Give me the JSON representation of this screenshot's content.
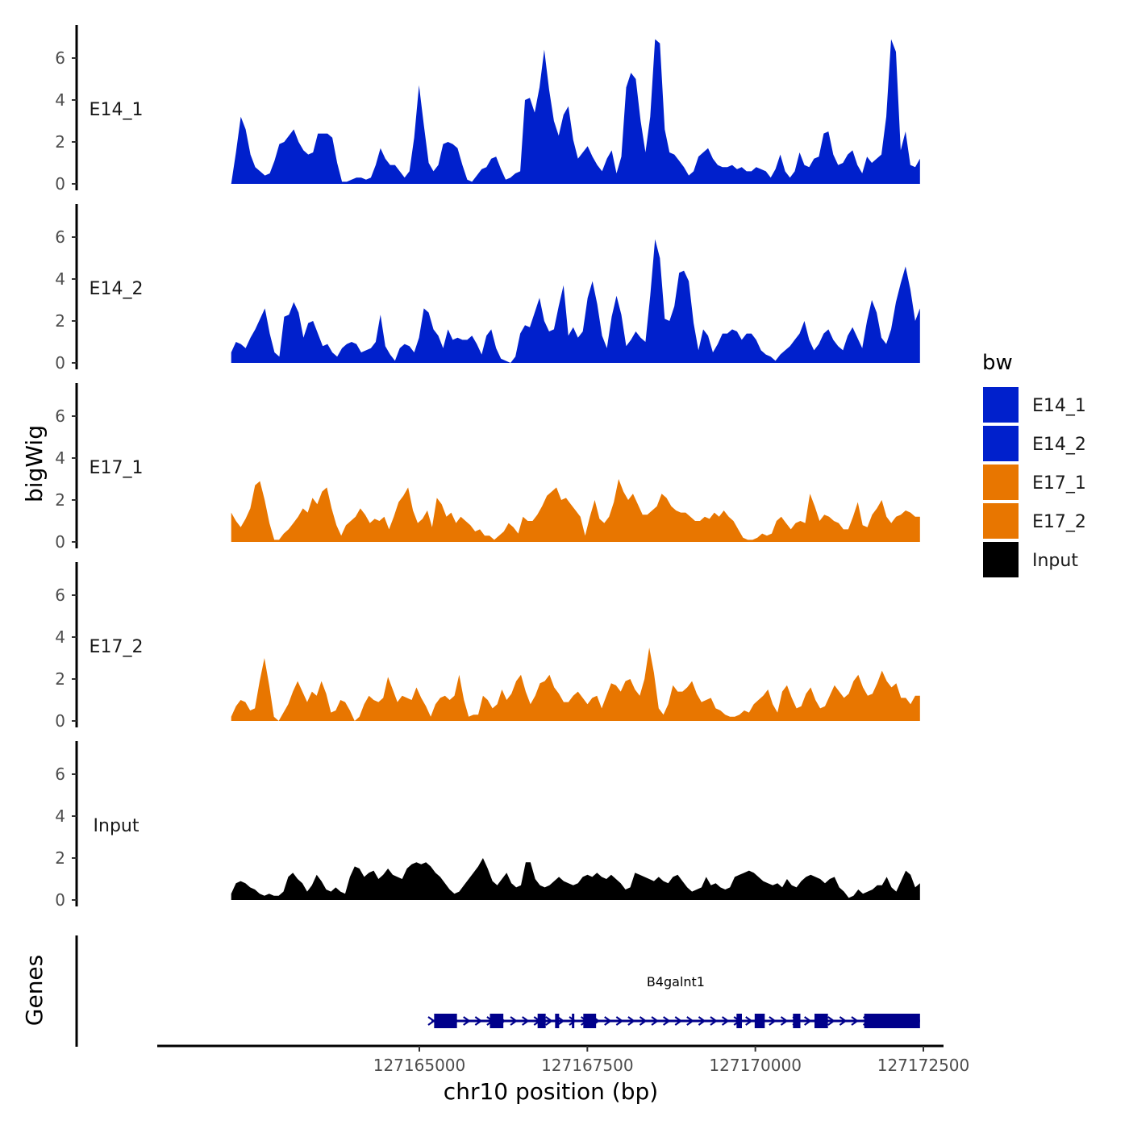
{
  "chart_data": {
    "type": "area",
    "y_axis_title": "bigWig",
    "x_axis_title": "chr10 position (bp)",
    "genes_axis_title": "Genes",
    "xlim": [
      127161100,
      127172800
    ],
    "data_range": [
      127162200,
      127172450
    ],
    "x_ticks": [
      127165000,
      127167500,
      127170000,
      127172500
    ],
    "x_tick_labels": [
      "127165000",
      "127167500",
      "127170000",
      "127172500"
    ],
    "ylim": [
      0,
      7.5
    ],
    "y_ticks": [
      0,
      2,
      4,
      6
    ],
    "y_tick_labels": [
      "0",
      "2",
      "4",
      "6"
    ],
    "legend": {
      "title": "bw",
      "entries": [
        {
          "label": "E14_1",
          "color": "#0020CC"
        },
        {
          "label": "E14_2",
          "color": "#0020CC"
        },
        {
          "label": "E17_1",
          "color": "#E87600"
        },
        {
          "label": "E17_2",
          "color": "#E87600"
        },
        {
          "label": "Input",
          "color": "#000000"
        }
      ]
    },
    "tracks": [
      {
        "name": "E14_1",
        "color": "#0020CC",
        "values": [
          0.0,
          1.5,
          3.2,
          2.6,
          1.4,
          0.8,
          0.6,
          0.4,
          0.5,
          1.1,
          1.9,
          2.0,
          2.3,
          2.6,
          2.0,
          1.6,
          1.4,
          1.5,
          2.4,
          2.4,
          2.4,
          2.2,
          1.0,
          0.1,
          0.1,
          0.2,
          0.3,
          0.3,
          0.2,
          0.3,
          0.9,
          1.7,
          1.2,
          0.9,
          0.9,
          0.6,
          0.3,
          0.6,
          2.2,
          4.7,
          2.8,
          1.0,
          0.6,
          0.9,
          1.9,
          2.0,
          1.9,
          1.7,
          0.9,
          0.2,
          0.1,
          0.4,
          0.7,
          0.8,
          1.2,
          1.3,
          0.7,
          0.2,
          0.3,
          0.5,
          0.6,
          4.0,
          4.1,
          3.4,
          4.6,
          6.4,
          4.5,
          3.0,
          2.3,
          3.3,
          3.7,
          2.1,
          1.2,
          1.5,
          1.8,
          1.3,
          0.9,
          0.6,
          1.2,
          1.6,
          0.5,
          1.3,
          4.6,
          5.3,
          5.0,
          3.0,
          1.5,
          3.2,
          6.9,
          6.7,
          2.6,
          1.5,
          1.4,
          1.1,
          0.8,
          0.4,
          0.6,
          1.3,
          1.5,
          1.7,
          1.2,
          0.9,
          0.8,
          0.8,
          0.9,
          0.7,
          0.8,
          0.6,
          0.6,
          0.8,
          0.7,
          0.6,
          0.3,
          0.7,
          1.4,
          0.6,
          0.3,
          0.6,
          1.5,
          0.9,
          0.8,
          1.2,
          1.3,
          2.4,
          2.5,
          1.4,
          0.9,
          1.0,
          1.4,
          1.6,
          0.9,
          0.5,
          1.3,
          1.0,
          1.2,
          1.4,
          3.2,
          6.9,
          6.3,
          1.6,
          2.5,
          0.9,
          0.8,
          1.2
        ]
      },
      {
        "name": "E14_2",
        "color": "#0020CC",
        "values": [
          0.5,
          1.0,
          0.9,
          0.7,
          1.2,
          1.6,
          2.1,
          2.6,
          1.4,
          0.5,
          0.3,
          2.2,
          2.3,
          2.9,
          2.4,
          1.2,
          1.9,
          2.0,
          1.4,
          0.8,
          0.9,
          0.5,
          0.3,
          0.7,
          0.9,
          1.0,
          0.9,
          0.5,
          0.6,
          0.7,
          1.0,
          2.3,
          0.8,
          0.4,
          0.1,
          0.7,
          0.9,
          0.8,
          0.5,
          1.2,
          2.6,
          2.4,
          1.6,
          1.3,
          0.7,
          1.6,
          1.1,
          1.2,
          1.1,
          1.1,
          1.3,
          0.9,
          0.4,
          1.3,
          1.6,
          0.7,
          0.2,
          0.1,
          0.0,
          0.3,
          1.4,
          1.8,
          1.7,
          2.4,
          3.1,
          2.0,
          1.5,
          1.6,
          2.7,
          3.7,
          1.3,
          1.7,
          1.2,
          1.5,
          3.1,
          3.9,
          2.8,
          1.3,
          0.7,
          2.2,
          3.2,
          2.3,
          0.8,
          1.1,
          1.5,
          1.2,
          1.0,
          3.2,
          5.9,
          5.0,
          2.1,
          2.0,
          2.7,
          4.3,
          4.4,
          3.9,
          1.9,
          0.6,
          1.6,
          1.3,
          0.5,
          0.9,
          1.4,
          1.4,
          1.6,
          1.5,
          1.1,
          1.4,
          1.4,
          1.1,
          0.6,
          0.4,
          0.3,
          0.1,
          0.4,
          0.6,
          0.8,
          1.1,
          1.4,
          2.0,
          1.1,
          0.6,
          0.9,
          1.4,
          1.6,
          1.1,
          0.8,
          0.6,
          1.3,
          1.7,
          1.2,
          0.7,
          2.0,
          3.0,
          2.4,
          1.2,
          0.9,
          1.6,
          2.9,
          3.8,
          4.6,
          3.5,
          2.0,
          2.6
        ]
      },
      {
        "name": "E17_1",
        "color": "#E87600",
        "values": [
          1.4,
          1.0,
          0.7,
          1.1,
          1.6,
          2.7,
          2.9,
          2.0,
          0.9,
          0.1,
          0.1,
          0.4,
          0.6,
          0.9,
          1.2,
          1.6,
          1.4,
          2.1,
          1.8,
          2.4,
          2.6,
          1.6,
          0.8,
          0.3,
          0.8,
          1.0,
          1.2,
          1.6,
          1.3,
          0.9,
          1.1,
          1.0,
          1.2,
          0.6,
          1.2,
          1.9,
          2.2,
          2.6,
          1.5,
          0.9,
          1.1,
          1.5,
          0.7,
          2.1,
          1.8,
          1.2,
          1.4,
          0.9,
          1.2,
          1.0,
          0.8,
          0.5,
          0.6,
          0.3,
          0.3,
          0.1,
          0.3,
          0.5,
          0.9,
          0.7,
          0.4,
          1.2,
          1.0,
          1.0,
          1.3,
          1.7,
          2.2,
          2.4,
          2.6,
          2.0,
          2.1,
          1.8,
          1.5,
          1.2,
          0.3,
          1.2,
          2.0,
          1.1,
          0.9,
          1.2,
          1.9,
          3.0,
          2.4,
          2.0,
          2.3,
          1.8,
          1.3,
          1.3,
          1.5,
          1.7,
          2.3,
          2.1,
          1.7,
          1.5,
          1.4,
          1.4,
          1.2,
          1.0,
          1.0,
          1.2,
          1.1,
          1.4,
          1.2,
          1.5,
          1.2,
          1.0,
          0.6,
          0.2,
          0.1,
          0.1,
          0.2,
          0.4,
          0.3,
          0.4,
          1.0,
          1.2,
          0.9,
          0.6,
          0.9,
          1.0,
          0.9,
          2.3,
          1.7,
          1.0,
          1.3,
          1.2,
          1.0,
          0.9,
          0.6,
          0.6,
          1.2,
          1.9,
          0.8,
          0.7,
          1.3,
          1.6,
          2.0,
          1.2,
          0.9,
          1.2,
          1.3,
          1.5,
          1.4,
          1.2,
          1.2
        ]
      },
      {
        "name": "E17_2",
        "color": "#E87600",
        "values": [
          0.2,
          0.7,
          1.0,
          0.9,
          0.5,
          0.6,
          1.9,
          3.0,
          1.7,
          0.2,
          0.0,
          0.4,
          0.8,
          1.4,
          1.9,
          1.4,
          0.9,
          1.4,
          1.2,
          1.9,
          1.3,
          0.4,
          0.5,
          1.0,
          0.9,
          0.5,
          0.0,
          0.2,
          0.8,
          1.2,
          1.0,
          0.9,
          1.1,
          2.1,
          1.5,
          0.9,
          1.2,
          1.1,
          1.0,
          1.6,
          1.1,
          0.7,
          0.2,
          0.8,
          1.1,
          1.2,
          1.0,
          1.2,
          2.2,
          1.0,
          0.2,
          0.3,
          0.3,
          1.2,
          1.0,
          0.6,
          0.8,
          1.5,
          1.0,
          1.3,
          1.9,
          2.2,
          1.4,
          0.8,
          1.2,
          1.8,
          1.9,
          2.2,
          1.6,
          1.3,
          0.9,
          0.9,
          1.2,
          1.4,
          1.1,
          0.8,
          1.1,
          1.2,
          0.6,
          1.2,
          1.8,
          1.7,
          1.4,
          1.9,
          2.0,
          1.5,
          1.2,
          2.0,
          3.5,
          2.3,
          0.6,
          0.3,
          0.8,
          1.7,
          1.4,
          1.4,
          1.6,
          1.9,
          1.3,
          0.9,
          1.0,
          1.1,
          0.6,
          0.5,
          0.3,
          0.2,
          0.2,
          0.3,
          0.5,
          0.4,
          0.8,
          1.0,
          1.2,
          1.5,
          0.8,
          0.4,
          1.4,
          1.7,
          1.1,
          0.6,
          0.7,
          1.3,
          1.6,
          1.0,
          0.6,
          0.7,
          1.2,
          1.7,
          1.4,
          1.1,
          1.3,
          1.9,
          2.2,
          1.6,
          1.2,
          1.3,
          1.8,
          2.4,
          1.9,
          1.6,
          1.8,
          1.1,
          1.1,
          0.8,
          1.2,
          1.2
        ]
      },
      {
        "name": "Input",
        "color": "#000000",
        "values": [
          0.3,
          0.8,
          0.9,
          0.8,
          0.6,
          0.5,
          0.3,
          0.2,
          0.3,
          0.2,
          0.2,
          0.4,
          1.1,
          1.3,
          1.0,
          0.8,
          0.4,
          0.7,
          1.2,
          0.9,
          0.5,
          0.4,
          0.6,
          0.4,
          0.3,
          1.1,
          1.6,
          1.5,
          1.1,
          1.3,
          1.4,
          1.0,
          1.2,
          1.5,
          1.2,
          1.1,
          1.0,
          1.5,
          1.7,
          1.8,
          1.7,
          1.8,
          1.6,
          1.3,
          1.1,
          0.8,
          0.5,
          0.3,
          0.4,
          0.7,
          1.0,
          1.3,
          1.6,
          2.0,
          1.5,
          0.9,
          0.7,
          1.0,
          1.3,
          0.8,
          0.6,
          0.7,
          1.8,
          1.8,
          1.0,
          0.7,
          0.6,
          0.7,
          0.9,
          1.1,
          0.9,
          0.8,
          0.7,
          0.8,
          1.1,
          1.2,
          1.1,
          1.3,
          1.1,
          1.0,
          1.2,
          1.0,
          0.8,
          0.5,
          0.6,
          1.3,
          1.2,
          1.1,
          1.0,
          0.9,
          1.1,
          0.9,
          0.8,
          1.1,
          1.2,
          0.9,
          0.6,
          0.4,
          0.5,
          0.6,
          1.1,
          0.7,
          0.8,
          0.6,
          0.5,
          0.6,
          1.1,
          1.2,
          1.3,
          1.4,
          1.3,
          1.1,
          0.9,
          0.8,
          0.7,
          0.8,
          0.6,
          1.0,
          0.7,
          0.6,
          0.9,
          1.1,
          1.2,
          1.1,
          1.0,
          0.8,
          1.0,
          1.1,
          0.6,
          0.4,
          0.1,
          0.2,
          0.5,
          0.3,
          0.4,
          0.5,
          0.7,
          0.7,
          1.1,
          0.6,
          0.4,
          0.9,
          1.4,
          1.2,
          0.6,
          0.8
        ]
      }
    ],
    "gene": {
      "name": "B4galnt1",
      "strand": "+",
      "start": 127165180,
      "end": 127172450,
      "exons": [
        [
          127165220,
          127165560
        ],
        [
          127166050,
          127166250
        ],
        [
          127166760,
          127166880
        ],
        [
          127167020,
          127167080
        ],
        [
          127167270,
          127167290
        ],
        [
          127167440,
          127167630
        ],
        [
          127169720,
          127169800
        ],
        [
          127169990,
          127170140
        ],
        [
          127170560,
          127170670
        ],
        [
          127170880,
          127171080
        ],
        [
          127171620,
          127172450
        ]
      ],
      "color": "#00008B"
    }
  }
}
